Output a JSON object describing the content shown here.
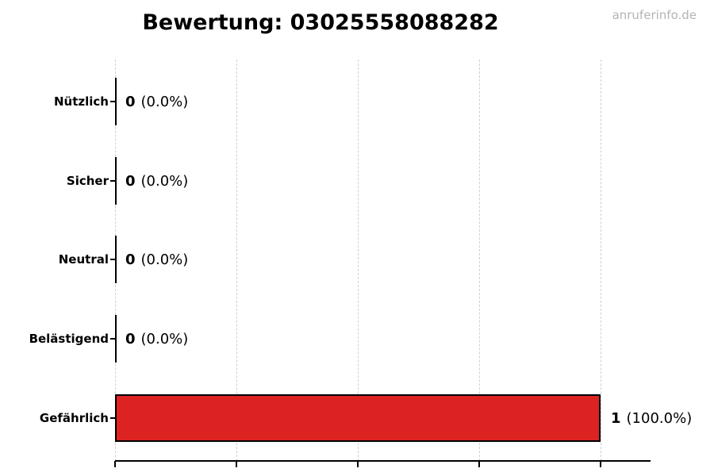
{
  "watermark": "anruferinfo.de",
  "chart_data": {
    "type": "bar",
    "orientation": "horizontal",
    "title": "Bewertung: 03025558088282",
    "categories": [
      "Nützlich",
      "Sicher",
      "Neutral",
      "Belästigend",
      "Gefährlich"
    ],
    "values": [
      0,
      0,
      0,
      0,
      1
    ],
    "value_labels": [
      {
        "count": "0",
        "pct": "(0.0%)"
      },
      {
        "count": "0",
        "pct": "(0.0%)"
      },
      {
        "count": "0",
        "pct": "(0.0%)"
      },
      {
        "count": "0",
        "pct": "(0.0%)"
      },
      {
        "count": "1",
        "pct": "(100.0%)"
      }
    ],
    "xlabel": "",
    "ylabel": "",
    "xlim": [
      0,
      1.1
    ],
    "x_ticks": [
      0,
      0.25,
      0.5,
      0.75,
      1
    ],
    "x_tick_labels_visible": false,
    "grid": "vertical-dashed",
    "legend": "none",
    "bar_color": "#dd2222",
    "bar_edge_color": "#000000",
    "grid_color": "#cfcfcf",
    "text_color": "#000000",
    "watermark_color": "#b4b4b4"
  }
}
